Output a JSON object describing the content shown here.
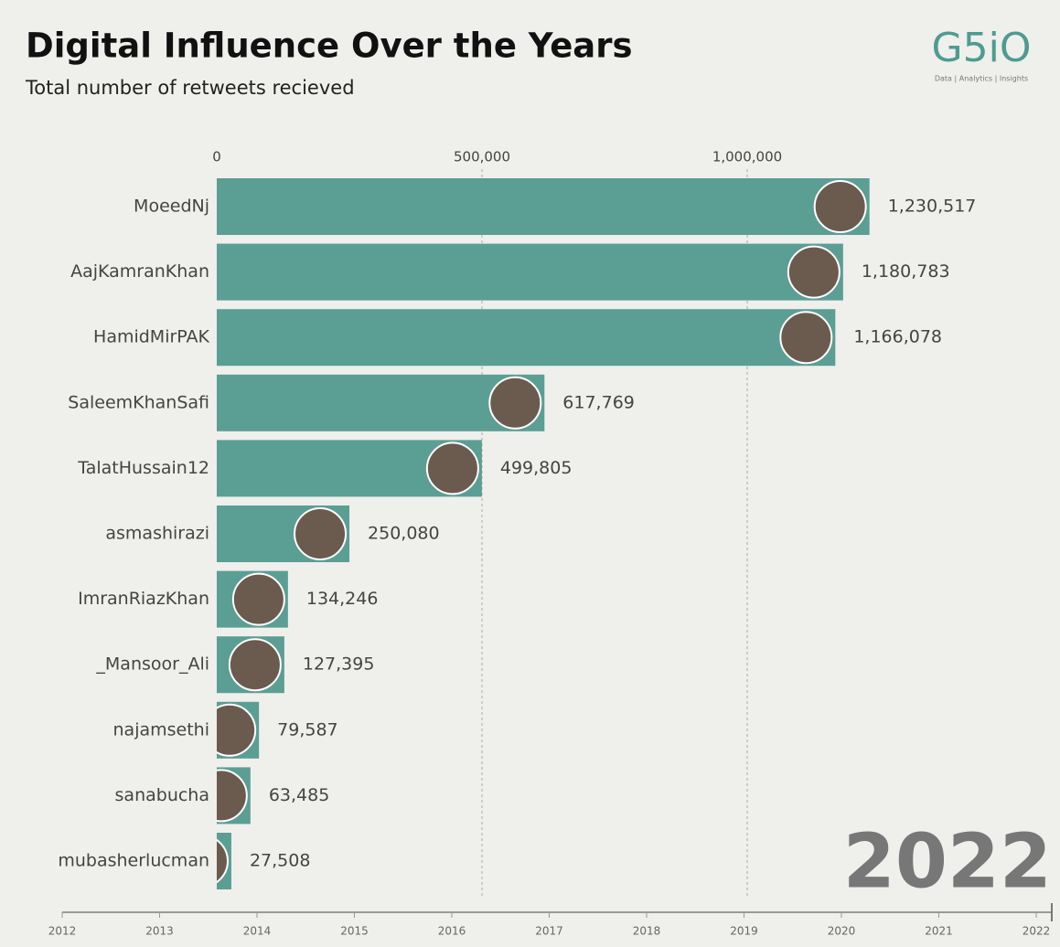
{
  "chart_data": {
    "type": "bar",
    "orientation": "horizontal",
    "title": "Digital Influence Over the Years",
    "subtitle": "Total number of retweets recieved",
    "logo": "G5iO",
    "logo_tagline": "Data | Analytics | Insights",
    "current_year": "2022",
    "categories": [
      "MoeedNj",
      "AajKamranKhan",
      "HamidMirPAK",
      "SaleemKhanSafi",
      "TalatHussain12",
      "asmashirazi",
      "ImranRiazKhan",
      "_Mansoor_Ali",
      "najamsethi",
      "sanabucha",
      "mubasherlucman"
    ],
    "values": [
      1230517,
      1180783,
      1166078,
      617769,
      499805,
      250080,
      134246,
      127395,
      79587,
      63485,
      27508
    ],
    "value_labels": [
      "1,230,517",
      "1,180,783",
      "1,166,078",
      "617,769",
      "499,805",
      "250,080",
      "134,246",
      "127,395",
      "79,587",
      "63,485",
      "27,508"
    ],
    "color": "#5b9e94",
    "xlim": [
      0,
      1400000
    ],
    "xticks": [
      0,
      {
        "value": 500000,
        "label": "500,000"
      },
      {
        "value": 1000000,
        "label": "1,000,000"
      }
    ],
    "grid": true,
    "timeline_lim": [
      2012,
      2022
    ],
    "timeline_ticks": [
      2012,
      2013,
      2014,
      2015,
      2016,
      2017,
      2018,
      2019,
      2020,
      2021,
      2022
    ]
  }
}
